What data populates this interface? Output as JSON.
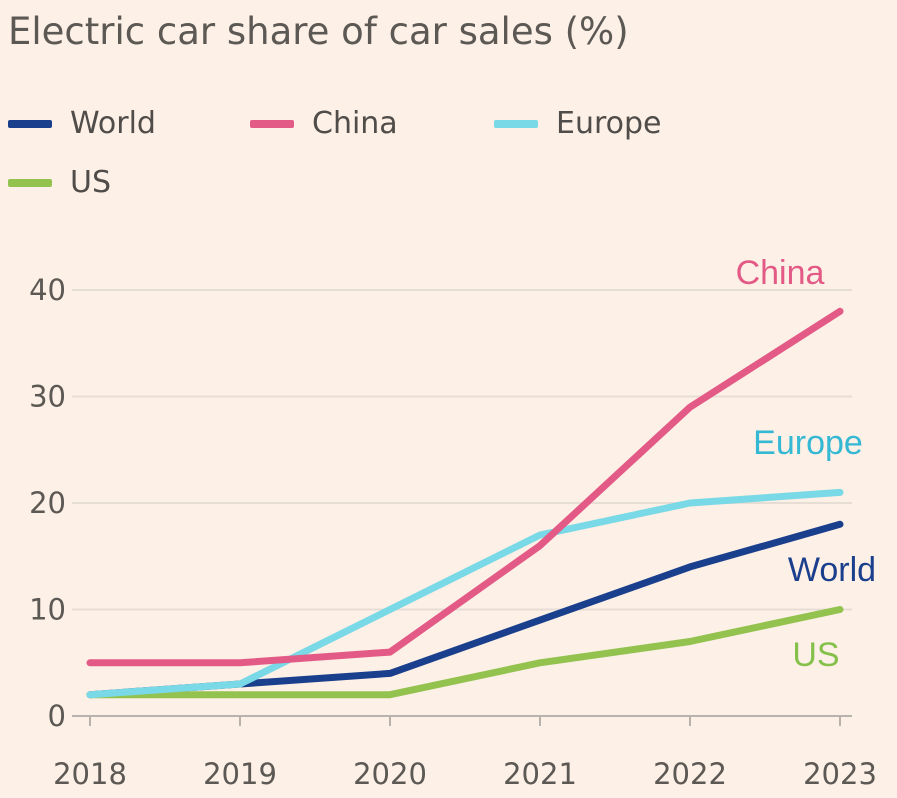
{
  "chart_data": {
    "type": "line",
    "title": "Electric car share of car sales (%)",
    "xlabel": "",
    "ylabel": "",
    "x": [
      2018,
      2019,
      2020,
      2021,
      2022,
      2023
    ],
    "x_tick_labels": [
      "2018",
      "2019",
      "2020",
      "2021",
      "2022",
      "2023"
    ],
    "y_ticks": [
      0,
      10,
      20,
      30,
      40
    ],
    "y_tick_labels": [
      "0",
      "10",
      "20",
      "30",
      "40"
    ],
    "ylim": [
      0,
      40
    ],
    "grid": true,
    "legend_position": "top-left",
    "series": [
      {
        "name": "World",
        "color": "#1a3f8c",
        "label_color": "#1a3f8c",
        "values": [
          2,
          3,
          4,
          9,
          14,
          18
        ]
      },
      {
        "name": "China",
        "color": "#e25a85",
        "label_color": "#e25a85",
        "values": [
          5,
          5,
          6,
          16,
          29,
          38
        ]
      },
      {
        "name": "Europe",
        "color": "#7ad9e6",
        "label_color": "#35b8d4",
        "values": [
          2,
          3,
          10,
          17,
          20,
          21
        ]
      },
      {
        "name": "US",
        "color": "#93c24f",
        "label_color": "#84c04a",
        "values": [
          2,
          2,
          2,
          5,
          7,
          10
        ]
      }
    ],
    "end_labels": [
      "China",
      "Europe",
      "World",
      "US"
    ]
  }
}
